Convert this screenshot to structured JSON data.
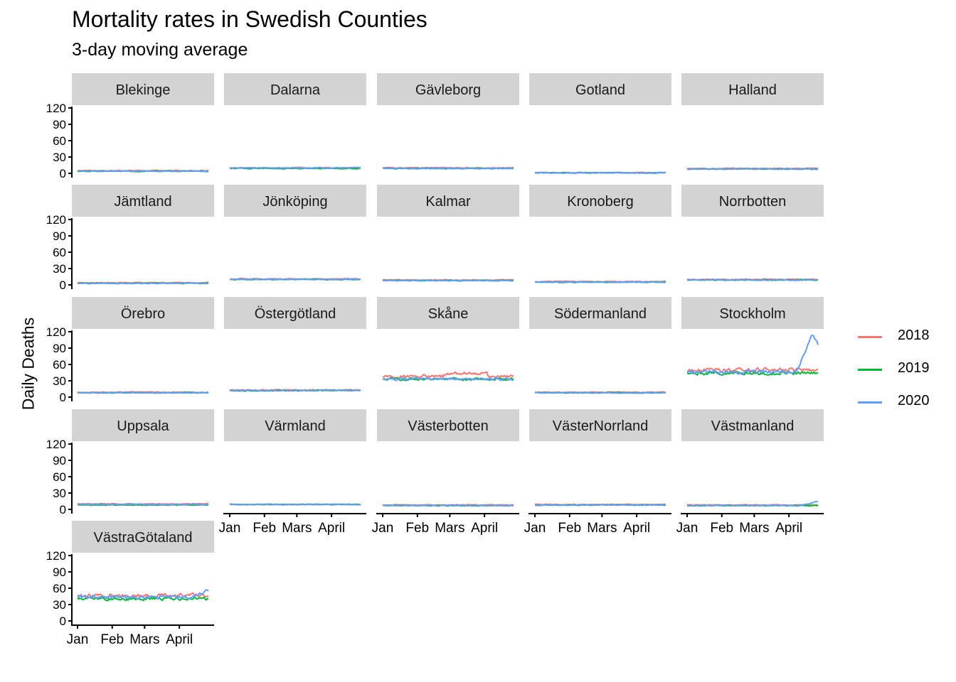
{
  "title": "Mortality rates in Swedish Counties",
  "subtitle": "3-day moving average",
  "chart_data": {
    "type": "line",
    "title": "Mortality rates in Swedish Counties",
    "subtitle": "3-day moving average",
    "xlabel": "",
    "ylabel": "Daily Deaths",
    "ylim": [
      0,
      120
    ],
    "yticks": [
      0,
      30,
      60,
      90,
      120
    ],
    "xticks": [
      "Jan",
      "Feb",
      "Mars",
      "April"
    ],
    "xtick_days": [
      1,
      32,
      61,
      92
    ],
    "xlim_days": [
      1,
      118
    ],
    "grid": false,
    "legend_position": "right",
    "series_meta": [
      {
        "name": "2018",
        "color": "#F8766D"
      },
      {
        "name": "2019",
        "color": "#00BA38"
      },
      {
        "name": "2020",
        "color": "#619CFF"
      }
    ],
    "panels": [
      {
        "county": "Blekinge",
        "values": {
          "2018": 5,
          "2019": 4,
          "2020": 4
        }
      },
      {
        "county": "Dalarna",
        "values": {
          "2018": 10,
          "2019": 9,
          "2020": 10
        }
      },
      {
        "county": "Gävleborg",
        "values": {
          "2018": 10,
          "2019": 9,
          "2020": 9
        }
      },
      {
        "county": "Gotland",
        "values": {
          "2018": 1,
          "2019": 1,
          "2020": 1
        }
      },
      {
        "county": "Halland",
        "values": {
          "2018": 9,
          "2019": 8,
          "2020": 8
        }
      },
      {
        "county": "Jämtland",
        "values": {
          "2018": 4,
          "2019": 3,
          "2020": 3
        }
      },
      {
        "county": "Jönköping",
        "values": {
          "2018": 11,
          "2019": 10,
          "2020": 10
        }
      },
      {
        "county": "Kalmar",
        "values": {
          "2018": 9,
          "2019": 8,
          "2020": 8
        }
      },
      {
        "county": "Kronoberg",
        "values": {
          "2018": 6,
          "2019": 5,
          "2020": 5
        }
      },
      {
        "county": "Norrbotten",
        "values": {
          "2018": 10,
          "2019": 9,
          "2020": 9
        }
      },
      {
        "county": "Örebro",
        "values": {
          "2018": 9,
          "2019": 8,
          "2020": 8
        }
      },
      {
        "county": "Östergötland",
        "values": {
          "2018": 13,
          "2019": 12,
          "2020": 12
        }
      },
      {
        "county": "Skåne",
        "values": {
          "2018": 38,
          "2019": 33,
          "2020": 33
        }
      },
      {
        "county": "Södermanland",
        "values": {
          "2018": 9,
          "2019": 8,
          "2020": 8
        }
      },
      {
        "county": "Stockholm",
        "values": {
          "2018": 50,
          "2019": 44,
          "2020": 46,
          "2020_peak": 116,
          "2020_end": 88
        }
      },
      {
        "county": "Uppsala",
        "values": {
          "2018": 10,
          "2019": 8,
          "2020": 9
        }
      },
      {
        "county": "Värmland",
        "values": {
          "2018": 9,
          "2019": 9,
          "2020": 9
        }
      },
      {
        "county": "Västerbotten",
        "values": {
          "2018": 8,
          "2019": 7,
          "2020": 7
        }
      },
      {
        "county": "VästerNorrland",
        "values": {
          "2018": 9,
          "2019": 8,
          "2020": 8
        }
      },
      {
        "county": "Västmanland",
        "values": {
          "2018": 8,
          "2019": 7,
          "2020": 7,
          "2020_end": 15
        }
      },
      {
        "county": "VästraGötaland",
        "values": {
          "2018": 47,
          "2019": 41,
          "2020": 44,
          "2020_end": 55
        }
      }
    ]
  }
}
